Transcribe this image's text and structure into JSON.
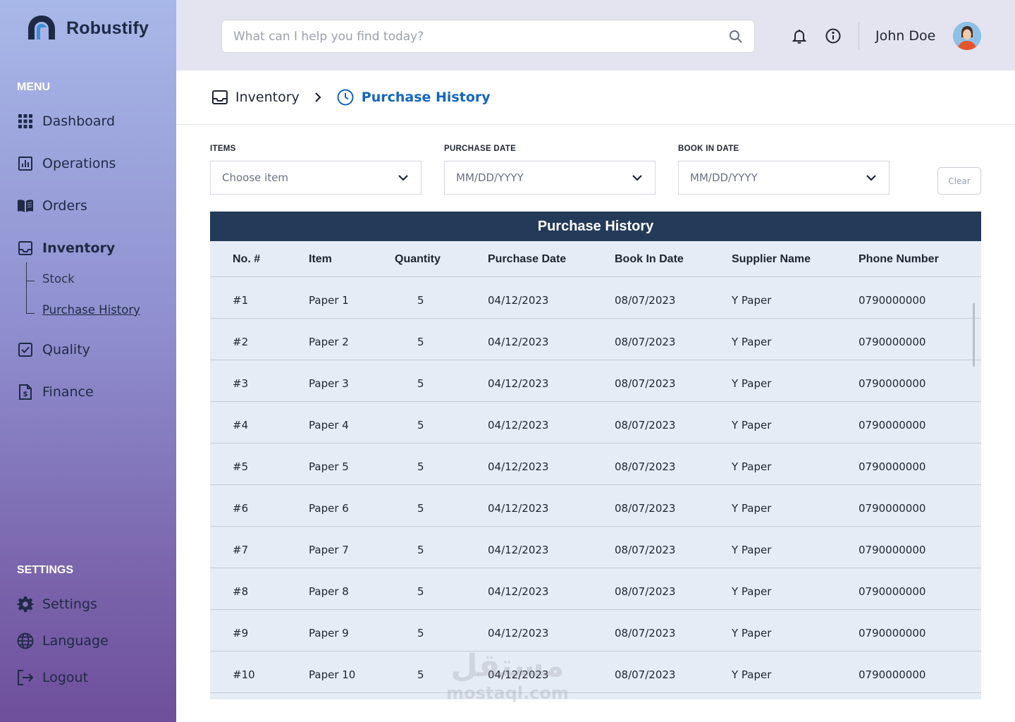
{
  "brand": {
    "name": "Robustify"
  },
  "sidebar": {
    "menu_label": "MENU",
    "items": [
      {
        "label": "Dashboard",
        "icon": "grid-icon"
      },
      {
        "label": "Operations",
        "icon": "chart-icon"
      },
      {
        "label": "Orders",
        "icon": "book-icon"
      },
      {
        "label": "Inventory",
        "icon": "inbox-icon",
        "active": true
      },
      {
        "label": "Quality",
        "icon": "checkbox-icon"
      },
      {
        "label": "Finance",
        "icon": "invoice-icon"
      }
    ],
    "inventory_sub": [
      {
        "label": "Stock"
      },
      {
        "label": "Purchase History",
        "active": true
      }
    ],
    "settings_label": "SETTINGS",
    "settings_items": [
      {
        "label": "Settings",
        "icon": "gear-icon"
      },
      {
        "label": "Language",
        "icon": "globe-icon"
      },
      {
        "label": "Logout",
        "icon": "logout-icon"
      }
    ]
  },
  "topbar": {
    "search_placeholder": "What can I help you find today?",
    "user_name": "John Doe"
  },
  "breadcrumb": {
    "parent": "Inventory",
    "current": "Purchase History"
  },
  "filters": {
    "items_label": "ITEMS",
    "items_placeholder": "Choose item",
    "purchase_date_label": "PURCHASE DATE",
    "purchase_date_placeholder": "MM/DD/YYYY",
    "book_in_label": "BOOK IN DATE",
    "book_in_placeholder": "MM/DD/YYYY",
    "clear_label": "Clear"
  },
  "table": {
    "title": "Purchase History",
    "columns": [
      "No. #",
      "Item",
      "Quantity",
      "Purchase Date",
      "Book In Date",
      "Supplier Name",
      "Phone Number"
    ],
    "rows": [
      [
        "#1",
        "Paper 1",
        "5",
        "04/12/2023",
        "08/07/2023",
        "Y Paper",
        "0790000000"
      ],
      [
        "#2",
        "Paper 2",
        "5",
        "04/12/2023",
        "08/07/2023",
        "Y Paper",
        "0790000000"
      ],
      [
        "#3",
        "Paper 3",
        "5",
        "04/12/2023",
        "08/07/2023",
        "Y Paper",
        "0790000000"
      ],
      [
        "#4",
        "Paper 4",
        "5",
        "04/12/2023",
        "08/07/2023",
        "Y Paper",
        "0790000000"
      ],
      [
        "#5",
        "Paper 5",
        "5",
        "04/12/2023",
        "08/07/2023",
        "Y Paper",
        "0790000000"
      ],
      [
        "#6",
        "Paper 6",
        "5",
        "04/12/2023",
        "08/07/2023",
        "Y Paper",
        "0790000000"
      ],
      [
        "#7",
        "Paper 7",
        "5",
        "04/12/2023",
        "08/07/2023",
        "Y Paper",
        "0790000000"
      ],
      [
        "#8",
        "Paper 8",
        "5",
        "04/12/2023",
        "08/07/2023",
        "Y Paper",
        "0790000000"
      ],
      [
        "#9",
        "Paper 9",
        "5",
        "04/12/2023",
        "08/07/2023",
        "Y Paper",
        "0790000000"
      ],
      [
        "#10",
        "Paper 10",
        "5",
        "04/12/2023",
        "08/07/2023",
        "Y Paper",
        "0790000000"
      ]
    ]
  },
  "watermark": {
    "arabic": "مستقل",
    "latin": "mostaql.com"
  }
}
